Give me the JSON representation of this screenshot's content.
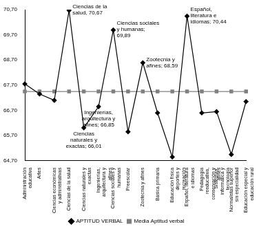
{
  "chart_data": {
    "type": "line",
    "categories": [
      "Administración educativa",
      "Artes",
      "Ciencias económicas y administrativas",
      "Ciencias de la salud",
      "Ciencias naturales y exactas",
      "Ingenierías, arquitectura y afines",
      "Ciencias sociales y humanas",
      "Preescolar",
      "Zootecnia y afines",
      "Básica primaria",
      "Educación física deportes y recreación",
      "Español, literatura e idiomas",
      "Pedagogía reeducativa, conservación y afines",
      "Sistemas, informática y tecnología",
      "Normalistas superior sin especialidad",
      "Educación especial y educación rural"
    ],
    "series": [
      {
        "name": "APTITUD VERBAL",
        "color": "#000000",
        "marker": "diamond",
        "values": [
          67.75,
          67.35,
          67.1,
          70.67,
          66.01,
          66.85,
          69.89,
          65.85,
          68.59,
          66.6,
          64.85,
          70.44,
          66.6,
          66.65,
          64.95,
          67.05
        ]
      },
      {
        "name": "Media Aptitud verbal",
        "color": "#808080",
        "marker": "square",
        "values": [
          67.45,
          67.45,
          67.45,
          67.45,
          67.45,
          67.45,
          67.45,
          67.45,
          67.45,
          67.45,
          67.45,
          67.45,
          67.45,
          67.45,
          67.45,
          67.45
        ]
      }
    ],
    "ylim": [
      64.7,
      70.7
    ],
    "yticks": [
      {
        "value": 64.7,
        "label": "64,70"
      },
      {
        "value": 65.7,
        "label": "65,70"
      },
      {
        "value": 66.7,
        "label": "66,70"
      },
      {
        "value": 67.7,
        "label": "67,70"
      },
      {
        "value": 68.7,
        "label": "68,70"
      },
      {
        "value": 69.7,
        "label": "69,70"
      },
      {
        "value": 70.7,
        "label": "70,70"
      }
    ],
    "grid": false,
    "legend": "bottom",
    "annotations": [
      {
        "category": "Ciencias de la salud",
        "text": "Ciencias de la salud, 70,67"
      },
      {
        "category": "Ciencias sociales y humanas",
        "text": "Ciencias sociales y humanas; 69,89"
      },
      {
        "category": "Zootecnia y afines",
        "text": "Zootecnia y afines; 68,59"
      },
      {
        "category": "Español, literatura e idiomas",
        "text": "Español, literatura e idiomas; 70,44"
      },
      {
        "category": "Ingenierías, arquitectura y afines",
        "text": "Ingenierías, arquitectura y afines; 66,85"
      },
      {
        "category": "Ciencias naturales y exactas",
        "text": "Ciencias naturales y exactas; 66,01"
      }
    ]
  }
}
